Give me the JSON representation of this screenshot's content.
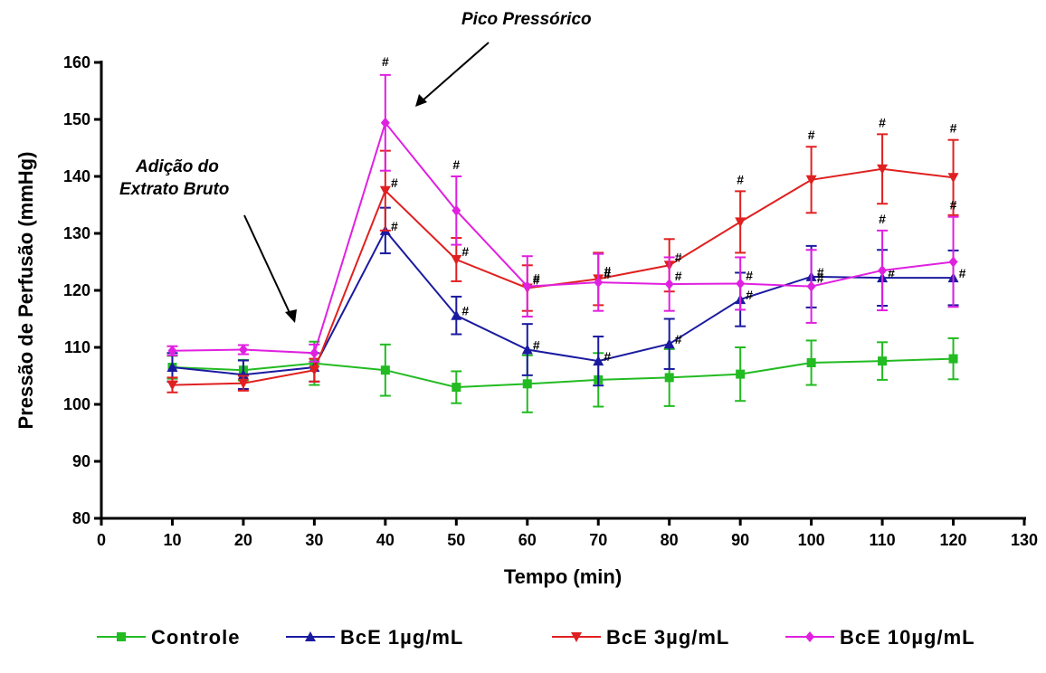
{
  "chart_data": {
    "type": "line",
    "title": "",
    "xlabel": "Tempo (min)",
    "ylabel": "Pressão de Perfusão (mmHg)",
    "xlim": [
      0,
      130
    ],
    "ylim": [
      80,
      160
    ],
    "xticks": [
      0,
      10,
      20,
      30,
      40,
      50,
      60,
      70,
      80,
      90,
      100,
      110,
      120,
      130
    ],
    "yticks": [
      80,
      90,
      100,
      110,
      120,
      130,
      140,
      150,
      160
    ],
    "grid": false,
    "legend_position": "bottom",
    "x": [
      10,
      20,
      30,
      40,
      50,
      60,
      70,
      80,
      90,
      100,
      110,
      120
    ],
    "series": [
      {
        "name": "Controle",
        "color": "#22bb22",
        "marker": "square",
        "values": [
          106.5,
          106.0,
          107.2,
          106.0,
          103.0,
          103.6,
          104.3,
          104.7,
          105.3,
          107.3,
          107.6,
          108.0
        ],
        "errors": [
          2.0,
          1.8,
          3.8,
          4.5,
          2.8,
          5.0,
          4.7,
          5.0,
          4.7,
          3.9,
          3.3,
          3.6
        ],
        "significant": [
          false,
          false,
          false,
          false,
          false,
          false,
          false,
          false,
          false,
          false,
          false,
          false
        ]
      },
      {
        "name": "BcE 1µg/mL",
        "color": "#1a1aa0",
        "marker": "triangle-up",
        "values": [
          106.5,
          105.2,
          106.5,
          130.5,
          115.6,
          109.6,
          107.6,
          110.6,
          118.4,
          122.4,
          122.2,
          122.2
        ],
        "errors": [
          2.5,
          2.5,
          2.5,
          4.0,
          3.3,
          4.5,
          4.3,
          4.4,
          4.7,
          5.4,
          4.9,
          4.8
        ],
        "significant": [
          false,
          false,
          false,
          true,
          true,
          true,
          true,
          true,
          true,
          true,
          true,
          true
        ]
      },
      {
        "name": "BcE 3µg/mL",
        "color": "#e02020",
        "marker": "triangle-down",
        "values": [
          103.4,
          103.7,
          106.0,
          137.5,
          125.4,
          120.4,
          122.0,
          124.4,
          132.0,
          139.4,
          141.3,
          139.8
        ],
        "errors": [
          1.3,
          1.3,
          2.0,
          7.0,
          3.8,
          4.0,
          4.6,
          4.6,
          5.4,
          5.8,
          6.1,
          6.6
        ],
        "significant": [
          false,
          false,
          false,
          true,
          true,
          true,
          true,
          true,
          true,
          true,
          true,
          true
        ]
      },
      {
        "name": "BcE 10µg/mL",
        "color": "#e020e0",
        "marker": "diamond",
        "values": [
          109.4,
          109.6,
          109.0,
          149.4,
          134.0,
          120.7,
          121.4,
          121.1,
          121.2,
          120.7,
          123.5,
          125.0
        ],
        "errors": [
          0.8,
          0.8,
          1.5,
          8.4,
          6.0,
          5.3,
          5.0,
          4.7,
          4.6,
          6.4,
          7.0,
          7.9
        ],
        "significant": [
          false,
          false,
          false,
          true,
          true,
          true,
          true,
          true,
          true,
          true,
          true,
          true
        ]
      }
    ],
    "significance_marker": "#",
    "annotations": [
      {
        "text_lines": [
          "Adição do",
          "Extrato Bruto"
        ]
      },
      {
        "text_lines": [
          "Pico Pressórico"
        ]
      }
    ]
  }
}
